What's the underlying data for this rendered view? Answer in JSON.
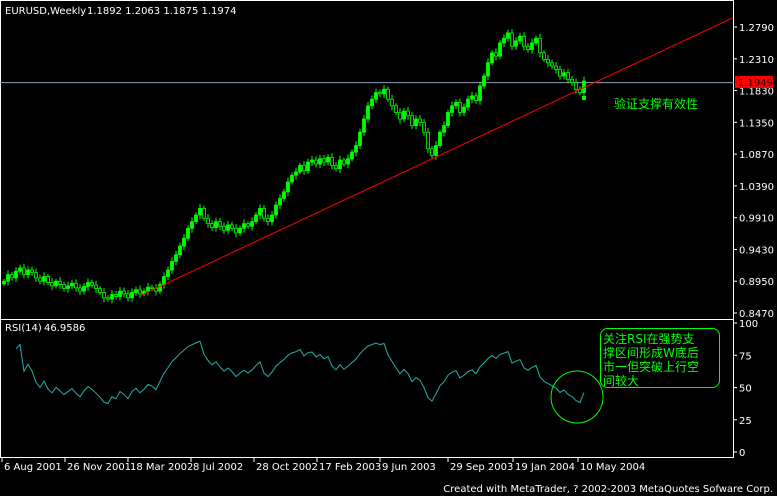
{
  "header": {
    "symbol": "EURUSD,Weekly",
    "ohlc": "1.1892 1.2063 1.1875 1.1974"
  },
  "rsi_header": {
    "label": "RSI(14)",
    "value": "46.9586"
  },
  "current_price_badge": "1.1949",
  "annotations": {
    "price_note": "验证支撑有效性",
    "rsi_note_lines": [
      "关注RSI在强势支",
      "撑区间形成W底后",
      "市一但突破上行空",
      "间较大"
    ]
  },
  "footer": "Created with MetaTrader, ? 2002-2003 MetaQuotes Sofware Corp.",
  "colors": {
    "candle": "#00ff00",
    "trendline": "#ff0000",
    "hline": "#8ca0b4",
    "rsi": "#20b2aa",
    "annotation": "#00ff00",
    "badge": "#ff0000"
  },
  "chart_data": [
    {
      "type": "candlestick",
      "title": "EURUSD,Weekly",
      "ylim": [
        0.847,
        1.279
      ],
      "yticks": [
        "1.2790",
        "1.2310",
        "1.1830",
        "1.1350",
        "1.0870",
        "1.0390",
        "0.9910",
        "0.9430",
        "0.8950",
        "0.8470"
      ],
      "xticks": [
        "6 Aug 2001",
        "26 Nov 2001",
        "18 Mar 2002",
        "8 Jul 2002",
        "28 Oct 2002",
        "17 Feb 2003",
        "9 Jun 2003",
        "29 Sep 2003",
        "19 Jan 2004",
        "10 May 2004"
      ],
      "weekly_close": [
        0.895,
        0.905,
        0.9,
        0.91,
        0.915,
        0.905,
        0.912,
        0.908,
        0.9,
        0.895,
        0.902,
        0.893,
        0.888,
        0.895,
        0.89,
        0.884,
        0.888,
        0.892,
        0.885,
        0.88,
        0.887,
        0.893,
        0.889,
        0.884,
        0.878,
        0.87,
        0.868,
        0.875,
        0.872,
        0.88,
        0.876,
        0.87,
        0.878,
        0.882,
        0.876,
        0.88,
        0.886,
        0.884,
        0.88,
        0.89,
        0.902,
        0.912,
        0.925,
        0.935,
        0.948,
        0.96,
        0.975,
        0.985,
        0.995,
        1.005,
        0.99,
        0.982,
        0.976,
        0.985,
        0.978,
        0.972,
        0.98,
        0.975,
        0.968,
        0.975,
        0.982,
        0.978,
        0.985,
        0.995,
        1.005,
        0.99,
        0.985,
        0.995,
        1.01,
        1.02,
        1.03,
        1.045,
        1.055,
        1.06,
        1.07,
        1.062,
        1.075,
        1.078,
        1.072,
        1.08,
        1.075,
        1.082,
        1.07,
        1.065,
        1.078,
        1.072,
        1.08,
        1.09,
        1.1,
        1.12,
        1.14,
        1.16,
        1.17,
        1.18,
        1.178,
        1.185,
        1.17,
        1.16,
        1.15,
        1.14,
        1.152,
        1.145,
        1.13,
        1.14,
        1.135,
        1.12,
        1.095,
        1.085,
        1.1,
        1.12,
        1.13,
        1.15,
        1.16,
        1.165,
        1.15,
        1.158,
        1.17,
        1.175,
        1.168,
        1.19,
        1.205,
        1.225,
        1.24,
        1.235,
        1.255,
        1.262,
        1.27,
        1.25,
        1.258,
        1.265,
        1.25,
        1.245,
        1.255,
        1.262,
        1.24,
        1.23,
        1.225,
        1.22,
        1.215,
        1.205,
        1.21,
        1.2,
        1.195,
        1.185,
        1.18,
        1.1974
      ],
      "horizontal_line": 1.1949,
      "trendline": {
        "start_price": 0.873,
        "end_price": 1.293
      }
    },
    {
      "type": "line",
      "title": "RSI(14)",
      "ylim": [
        0,
        100
      ],
      "yticks": [
        "100",
        "75",
        "50",
        "25",
        "0"
      ]
    }
  ]
}
